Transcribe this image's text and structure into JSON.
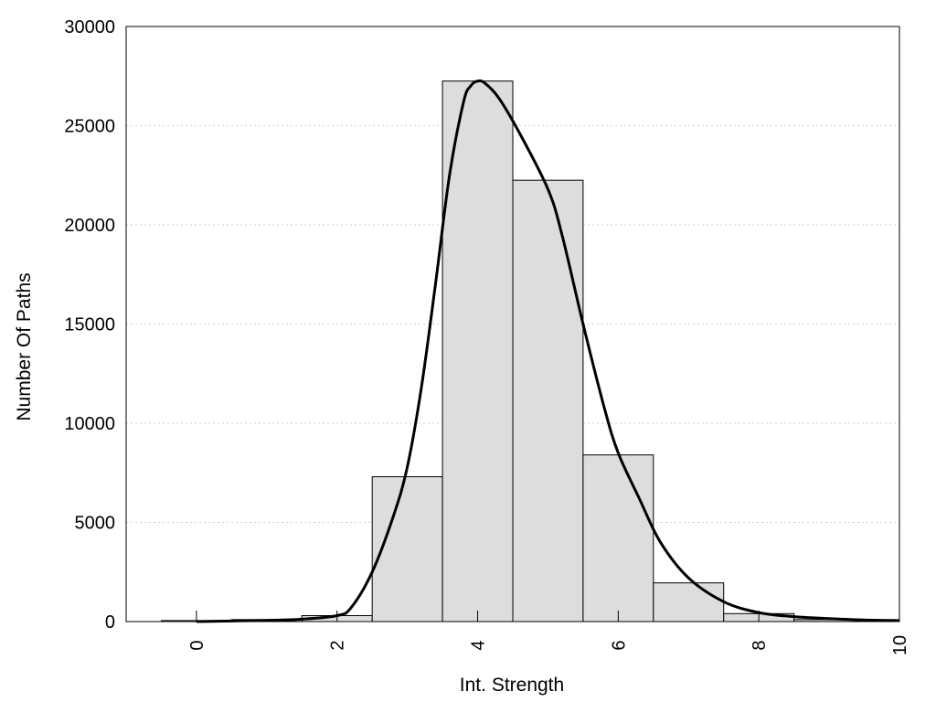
{
  "chart_data": {
    "type": "bar",
    "title": "",
    "xlabel": "Int. Strength",
    "ylabel": "Number Of Paths",
    "xlim": [
      -1,
      10
    ],
    "ylim": [
      0,
      30000
    ],
    "x_ticks": [
      "0",
      "2",
      "4",
      "6",
      "8",
      "10"
    ],
    "y_ticks": [
      "0",
      "5000",
      "10000",
      "15000",
      "20000",
      "25000",
      "30000"
    ],
    "grid": "horizontal dotted",
    "legend": "none",
    "bars": {
      "x": [
        0,
        1,
        2,
        3,
        4,
        5,
        6,
        7,
        8,
        9
      ],
      "values": [
        50,
        100,
        300,
        7300,
        27250,
        22250,
        8400,
        1950,
        400,
        100
      ],
      "width": 1
    },
    "density_curve": {
      "x": [
        0,
        0.5,
        1,
        1.5,
        2,
        2.2,
        2.5,
        2.8,
        3,
        3.2,
        3.4,
        3.6,
        3.8,
        3.9,
        4,
        4.1,
        4.3,
        4.6,
        5,
        5.2,
        5.5,
        5.8,
        6,
        6.3,
        6.6,
        7,
        7.5,
        8,
        8.5,
        9,
        9.5,
        10
      ],
      "y": [
        0,
        30,
        60,
        120,
        300,
        700,
        2500,
        5300,
        7800,
        11800,
        17000,
        22500,
        26200,
        27000,
        27250,
        27150,
        26400,
        24600,
        21800,
        19500,
        15000,
        10800,
        8500,
        6200,
        4000,
        2200,
        1000,
        450,
        250,
        150,
        80,
        50
      ],
      "color": "#000000"
    },
    "colors": {
      "bar_fill": "#dddddd",
      "bar_stroke": "#000000",
      "grid": "#cccccc"
    }
  }
}
